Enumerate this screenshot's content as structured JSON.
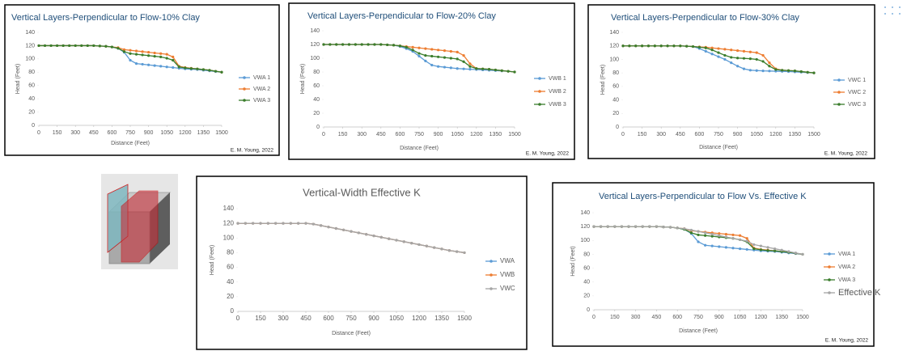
{
  "chart_data": [
    {
      "type": "line",
      "title": "Vertical Layers-Perpendicular to Flow-10% Clay",
      "xlabel": "Distance (Feet)",
      "ylabel": "Head (Feet)",
      "footer": "E. M. Young, 2022",
      "x": [
        0,
        50,
        100,
        150,
        200,
        250,
        300,
        350,
        400,
        450,
        500,
        550,
        600,
        650,
        700,
        750,
        800,
        850,
        900,
        950,
        1000,
        1050,
        1100,
        1150,
        1200,
        1250,
        1300,
        1350,
        1400,
        1450,
        1500
      ],
      "xlim": [
        0,
        1500
      ],
      "xticks": [
        0,
        150,
        300,
        450,
        600,
        750,
        900,
        1050,
        1200,
        1350,
        1500
      ],
      "ylim": [
        0,
        140
      ],
      "yticks": [
        0,
        20,
        40,
        60,
        80,
        100,
        120,
        140
      ],
      "grid": false,
      "series": [
        {
          "name": "VWA 1",
          "color": "#5b9bd5",
          "values": [
            120,
            120,
            120,
            120,
            120,
            120,
            120,
            120,
            120,
            120,
            119.5,
            119,
            118,
            116,
            110,
            98,
            93,
            92,
            91,
            90,
            89,
            88,
            87,
            86,
            85,
            84.5,
            84,
            83,
            82,
            81,
            80
          ]
        },
        {
          "name": "VWA 2",
          "color": "#ed7d31",
          "values": [
            120,
            120,
            120,
            120,
            120,
            120,
            120,
            120,
            120,
            120,
            119.5,
            119,
            118,
            117,
            114,
            113,
            112,
            111,
            110,
            109,
            108,
            107,
            103,
            89,
            87,
            86,
            85,
            84,
            83,
            81.5,
            80
          ]
        },
        {
          "name": "VWA 3",
          "color": "#3a7d2c",
          "values": [
            120,
            120,
            120,
            120,
            120,
            120,
            120,
            120,
            120,
            120,
            119.5,
            119,
            118,
            116,
            111,
            108,
            107,
            106,
            105,
            104,
            103,
            101,
            98,
            88,
            86.5,
            85.5,
            85,
            84,
            83,
            81.5,
            80
          ]
        }
      ]
    },
    {
      "type": "line",
      "title": "Vertical Layers-Perpendicular to Flow-20% Clay",
      "xlabel": "Distance (Feet)",
      "ylabel": "Head (Feet)",
      "footer": "E. M. Young, 2022",
      "x": [
        0,
        50,
        100,
        150,
        200,
        250,
        300,
        350,
        400,
        450,
        500,
        550,
        600,
        650,
        700,
        750,
        800,
        850,
        900,
        950,
        1000,
        1050,
        1100,
        1150,
        1200,
        1250,
        1300,
        1350,
        1400,
        1450,
        1500
      ],
      "xlim": [
        0,
        1500
      ],
      "xticks": [
        0,
        150,
        300,
        450,
        600,
        750,
        900,
        1050,
        1200,
        1350,
        1500
      ],
      "ylim": [
        0,
        140
      ],
      "yticks": [
        0,
        20,
        40,
        60,
        80,
        100,
        120,
        140
      ],
      "grid": false,
      "series": [
        {
          "name": "VWB 1",
          "color": "#5b9bd5",
          "values": [
            120,
            120,
            120,
            120,
            120,
            120,
            120,
            120,
            120,
            120,
            119.5,
            119,
            117,
            114,
            110,
            103,
            96,
            90,
            88,
            87,
            86,
            85,
            84.5,
            84,
            83.5,
            83,
            82.5,
            82,
            81.5,
            81,
            80
          ]
        },
        {
          "name": "VWB 2",
          "color": "#ed7d31",
          "values": [
            120,
            120,
            120,
            120,
            120,
            120,
            120,
            120,
            120,
            120,
            119.5,
            119,
            118,
            117,
            116,
            115,
            114,
            113,
            112,
            111,
            110,
            109,
            104,
            92,
            85,
            84.5,
            84,
            83,
            82,
            81,
            80
          ]
        },
        {
          "name": "VWB 3",
          "color": "#3a7d2c",
          "values": [
            120,
            120,
            120,
            120,
            120,
            120,
            120,
            120,
            120,
            120,
            119.5,
            119,
            118,
            116,
            112,
            107,
            104,
            103,
            102,
            101,
            100,
            99,
            95,
            88,
            85,
            84.5,
            84,
            83,
            82,
            81,
            80
          ]
        }
      ]
    },
    {
      "type": "line",
      "title": "Vertical Layers-Perpendicular to Flow-30% Clay",
      "xlabel": "Distance (Feet)",
      "ylabel": "Head (Feet)",
      "footer": "E. M. Young, 2022",
      "x": [
        0,
        50,
        100,
        150,
        200,
        250,
        300,
        350,
        400,
        450,
        500,
        550,
        600,
        650,
        700,
        750,
        800,
        850,
        900,
        950,
        1000,
        1050,
        1100,
        1150,
        1200,
        1250,
        1300,
        1350,
        1400,
        1450,
        1500
      ],
      "xlim": [
        0,
        1500
      ],
      "xticks": [
        0,
        150,
        300,
        450,
        600,
        750,
        900,
        1050,
        1200,
        1350,
        1500
      ],
      "ylim": [
        0,
        140
      ],
      "yticks": [
        0,
        20,
        40,
        60,
        80,
        100,
        120,
        140
      ],
      "grid": false,
      "series": [
        {
          "name": "VWC 1",
          "color": "#5b9bd5",
          "values": [
            120,
            120,
            120,
            120,
            120,
            120,
            120,
            120,
            120,
            120,
            119.5,
            119,
            116,
            112,
            108,
            104,
            100,
            95,
            90,
            86,
            84,
            83.5,
            83,
            82.8,
            82.5,
            82.2,
            82,
            81.5,
            81,
            80.5,
            80
          ]
        },
        {
          "name": "VWC 2",
          "color": "#ed7d31",
          "values": [
            120,
            120,
            120,
            120,
            120,
            120,
            120,
            120,
            120,
            120,
            119.5,
            119,
            118.5,
            118,
            117,
            116,
            115,
            114,
            113,
            112,
            111,
            110,
            106,
            95,
            86,
            84,
            83.5,
            83,
            82,
            81,
            80
          ]
        },
        {
          "name": "VWC 3",
          "color": "#3a7d2c",
          "values": [
            120,
            120,
            120,
            120,
            120,
            120,
            120,
            120,
            120,
            120,
            119.5,
            119,
            118,
            117,
            114,
            110,
            106,
            103,
            102,
            101.5,
            101,
            100,
            97,
            90,
            85,
            84,
            83.5,
            83,
            82,
            81,
            80
          ]
        }
      ]
    },
    {
      "type": "line",
      "title": "Vertical-Width Effective K",
      "xlabel": "Distance (Feet)",
      "ylabel": "Head (Feet)",
      "x": [
        0,
        50,
        100,
        150,
        200,
        250,
        300,
        350,
        400,
        450,
        500,
        550,
        600,
        650,
        700,
        750,
        800,
        850,
        900,
        950,
        1000,
        1050,
        1100,
        1150,
        1200,
        1250,
        1300,
        1350,
        1400,
        1450,
        1500
      ],
      "xlim": [
        0,
        1500
      ],
      "xticks": [
        0,
        150,
        300,
        450,
        600,
        750,
        900,
        1050,
        1200,
        1350,
        1500
      ],
      "ylim": [
        0,
        140
      ],
      "yticks": [
        0,
        20,
        40,
        60,
        80,
        100,
        120,
        140
      ],
      "grid": false,
      "series": [
        {
          "name": "VWA",
          "color": "#5b9bd5",
          "values": [
            120,
            120,
            120,
            120,
            120,
            120,
            120,
            120,
            120,
            120,
            119,
            117,
            115,
            113,
            111,
            109,
            107,
            105,
            103,
            101,
            99,
            97,
            95,
            93,
            91,
            89,
            87,
            85,
            83,
            81.5,
            80
          ]
        },
        {
          "name": "VWB",
          "color": "#ed7d31",
          "values": [
            120,
            120,
            120,
            120,
            120,
            120,
            120,
            120,
            120,
            120,
            119,
            117,
            115,
            113,
            111,
            109,
            107,
            105,
            103,
            101,
            99,
            97,
            95,
            93,
            91,
            89,
            87,
            85,
            83,
            81.5,
            80
          ]
        },
        {
          "name": "VWC",
          "color": "#a5a5a5",
          "values": [
            120,
            120,
            120,
            120,
            120,
            120,
            120,
            120,
            120,
            120,
            119,
            117,
            115,
            113,
            111,
            109,
            107,
            105,
            103,
            101,
            99,
            97,
            95,
            93,
            91,
            89,
            87,
            85,
            83,
            81.5,
            80
          ]
        }
      ]
    },
    {
      "type": "line",
      "title": "Vertical Layers-Perpendicular to Flow Vs. Effective K",
      "xlabel": "Distance (Feet)",
      "ylabel": "Head (Feet)",
      "footer": "E. M. Young, 2022",
      "x": [
        0,
        50,
        100,
        150,
        200,
        250,
        300,
        350,
        400,
        450,
        500,
        550,
        600,
        650,
        700,
        750,
        800,
        850,
        900,
        950,
        1000,
        1050,
        1100,
        1150,
        1200,
        1250,
        1300,
        1350,
        1400,
        1450,
        1500
      ],
      "xlim": [
        0,
        1500
      ],
      "xticks": [
        0,
        150,
        300,
        450,
        600,
        750,
        900,
        1050,
        1200,
        1350,
        1500
      ],
      "ylim": [
        0,
        140
      ],
      "yticks": [
        0,
        20,
        40,
        60,
        80,
        100,
        120,
        140
      ],
      "grid": false,
      "series": [
        {
          "name": "VWA 1",
          "color": "#5b9bd5",
          "values": [
            120,
            120,
            120,
            120,
            120,
            120,
            120,
            120,
            120,
            120,
            119.5,
            119,
            118,
            116,
            110,
            98,
            93,
            92,
            91,
            90,
            89,
            88,
            87,
            86,
            85,
            84.5,
            84,
            83,
            82,
            81,
            80
          ]
        },
        {
          "name": "VWA 2",
          "color": "#ed7d31",
          "values": [
            120,
            120,
            120,
            120,
            120,
            120,
            120,
            120,
            120,
            120,
            119.5,
            119,
            118,
            117,
            114,
            113,
            112,
            111,
            110,
            109,
            108,
            107,
            103,
            89,
            87,
            86,
            85,
            84,
            83,
            81.5,
            80
          ]
        },
        {
          "name": "VWA 3",
          "color": "#3a7d2c",
          "values": [
            120,
            120,
            120,
            120,
            120,
            120,
            120,
            120,
            120,
            120,
            119.5,
            119,
            118,
            116,
            111,
            108,
            107,
            106,
            105,
            104,
            103,
            101,
            98,
            88,
            86.5,
            85.5,
            85,
            84,
            83,
            81.5,
            80
          ]
        },
        {
          "name": "Effective K",
          "color": "#a5a5a5",
          "values": [
            120,
            120,
            120,
            120,
            120,
            120,
            120,
            120,
            120,
            120,
            119.5,
            119,
            118,
            117,
            115,
            113,
            111,
            109,
            107,
            105,
            103,
            101,
            99,
            94,
            92,
            90,
            88,
            86,
            84,
            82,
            80
          ]
        }
      ]
    }
  ]
}
